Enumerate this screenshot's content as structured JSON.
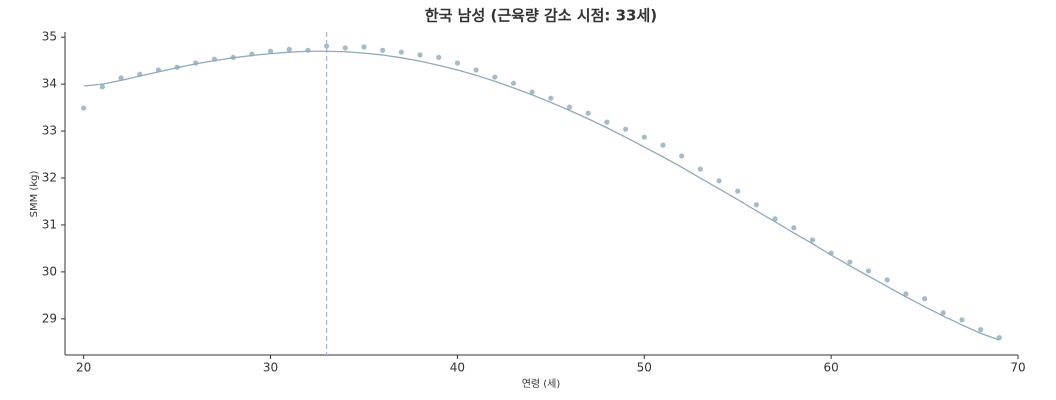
{
  "chart_data": {
    "type": "scatter",
    "title": "한국 남성 (근육량 감소 시점: 33세)",
    "x_label": "연령 (세)",
    "y_label": "SMM (kg)",
    "x": [
      20,
      21,
      22,
      23,
      24,
      25,
      26,
      27,
      28,
      29,
      30,
      31,
      32,
      33,
      34,
      35,
      36,
      37,
      38,
      39,
      40,
      41,
      42,
      43,
      44,
      45,
      46,
      47,
      48,
      49,
      50,
      51,
      52,
      53,
      54,
      55,
      56,
      57,
      58,
      59,
      60,
      61,
      62,
      63,
      64,
      65,
      66,
      67,
      68,
      69
    ],
    "series": [
      {
        "type": "scatter",
        "color": "#a3bccb",
        "values": [
          33.49,
          33.94,
          34.13,
          34.21,
          34.3,
          34.36,
          34.45,
          34.53,
          34.57,
          34.64,
          34.7,
          34.74,
          34.72,
          34.81,
          34.77,
          34.79,
          34.72,
          34.68,
          34.62,
          34.57,
          34.45,
          34.3,
          34.15,
          34.02,
          33.83,
          33.7,
          33.51,
          33.38,
          33.19,
          33.04,
          32.87,
          32.7,
          32.47,
          32.19,
          31.94,
          31.72,
          31.43,
          31.13,
          30.94,
          30.68,
          30.4,
          30.21,
          30.02,
          29.83,
          29.53,
          29.43,
          29.13,
          28.98,
          28.77,
          28.6
        ]
      },
      {
        "type": "line",
        "color": "#8eaabb",
        "values": [
          33.96,
          34.0,
          34.08,
          34.17,
          34.26,
          34.35,
          34.43,
          34.5,
          34.56,
          34.61,
          34.65,
          34.68,
          34.7,
          34.7,
          34.69,
          34.66,
          34.62,
          34.56,
          34.49,
          34.4,
          34.3,
          34.19,
          34.06,
          33.92,
          33.77,
          33.61,
          33.44,
          33.26,
          33.07,
          32.87,
          32.66,
          32.45,
          32.23,
          32.0,
          31.77,
          31.54,
          31.3,
          31.07,
          30.83,
          30.6,
          30.36,
          30.13,
          29.91,
          29.69,
          29.47,
          29.26,
          29.06,
          28.87,
          28.69,
          28.55
        ]
      }
    ],
    "vline": {
      "x": 33,
      "color": "#aab2dc"
    },
    "xlim": [
      19,
      70
    ],
    "ylim": [
      28.23,
      35.11
    ],
    "xticks": [
      20,
      30,
      40,
      50,
      60,
      70
    ],
    "yticks": [
      29,
      30,
      31,
      32,
      33,
      34,
      35
    ],
    "grid": false
  }
}
